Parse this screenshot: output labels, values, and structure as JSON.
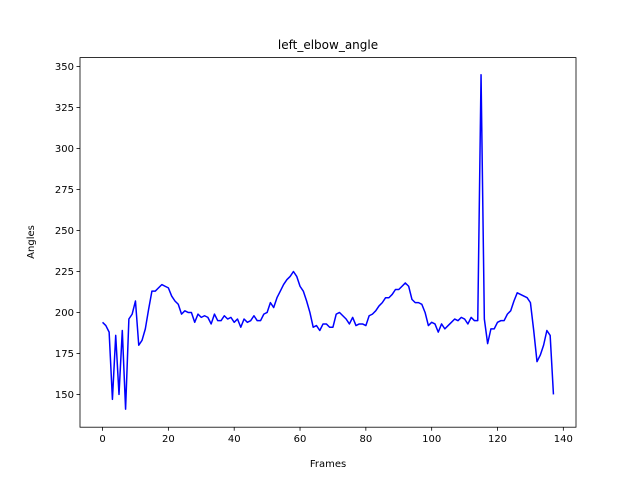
{
  "chart_data": {
    "type": "line",
    "title": "left_elbow_angle",
    "x_label": "Frames",
    "y_label": "Angles",
    "x": [
      0,
      1,
      2,
      3,
      4,
      5,
      6,
      7,
      8,
      9,
      10,
      11,
      12,
      13,
      14,
      15,
      16,
      17,
      18,
      19,
      20,
      21,
      22,
      23,
      24,
      25,
      26,
      27,
      28,
      29,
      30,
      31,
      32,
      33,
      34,
      35,
      36,
      37,
      38,
      39,
      40,
      41,
      42,
      43,
      44,
      45,
      46,
      47,
      48,
      49,
      50,
      51,
      52,
      53,
      54,
      55,
      56,
      57,
      58,
      59,
      60,
      61,
      62,
      63,
      64,
      65,
      66,
      67,
      68,
      69,
      70,
      71,
      72,
      73,
      74,
      75,
      76,
      77,
      78,
      79,
      80,
      81,
      82,
      83,
      84,
      85,
      86,
      87,
      88,
      89,
      90,
      91,
      92,
      93,
      94,
      95,
      96,
      97,
      98,
      99,
      100,
      101,
      102,
      103,
      104,
      105,
      106,
      107,
      108,
      109,
      110,
      111,
      112,
      113,
      114,
      115,
      116,
      117,
      118,
      119,
      120,
      121,
      122,
      123,
      124,
      125,
      126,
      127,
      128,
      129,
      130,
      131,
      132,
      133,
      134,
      135,
      136,
      137
    ],
    "series": [
      {
        "name": "left_elbow_angle",
        "color": "#0000ff",
        "values": [
          194,
          192,
          188,
          147,
          186,
          150,
          189,
          141,
          196,
          199,
          207,
          180,
          183,
          190,
          202,
          213,
          213,
          215,
          217,
          216,
          215,
          210,
          207,
          205,
          199,
          201,
          200,
          200,
          194,
          199,
          197,
          198,
          197,
          193,
          199,
          195,
          195,
          198,
          196,
          197,
          194,
          196,
          191,
          196,
          194,
          195,
          198,
          195,
          195,
          199,
          200,
          206,
          203,
          209,
          213,
          217,
          220,
          222,
          225,
          222,
          216,
          213,
          207,
          200,
          191,
          192,
          189,
          193,
          193,
          191,
          191,
          199,
          200,
          198,
          196,
          193,
          197,
          192,
          193,
          193,
          192,
          198,
          199,
          201,
          204,
          206,
          209,
          209,
          211,
          214,
          214,
          216,
          218,
          216,
          208,
          206,
          206,
          205,
          200,
          192,
          194,
          193,
          188,
          193,
          190,
          192,
          194,
          196,
          195,
          197,
          196,
          193,
          197,
          195,
          195,
          345,
          196,
          181,
          190,
          190,
          194,
          195,
          195,
          199,
          201,
          207,
          212,
          211,
          210,
          209,
          206,
          189,
          170,
          174,
          180,
          189,
          186,
          150
        ]
      }
    ],
    "xlim": [
      -6.85,
      143.85
    ],
    "xticks": [
      0,
      20,
      40,
      60,
      80,
      100,
      120,
      140
    ],
    "ylim": [
      130,
      355.5
    ],
    "yticks": [
      150,
      175,
      200,
      225,
      250,
      275,
      300,
      325,
      350
    ]
  }
}
